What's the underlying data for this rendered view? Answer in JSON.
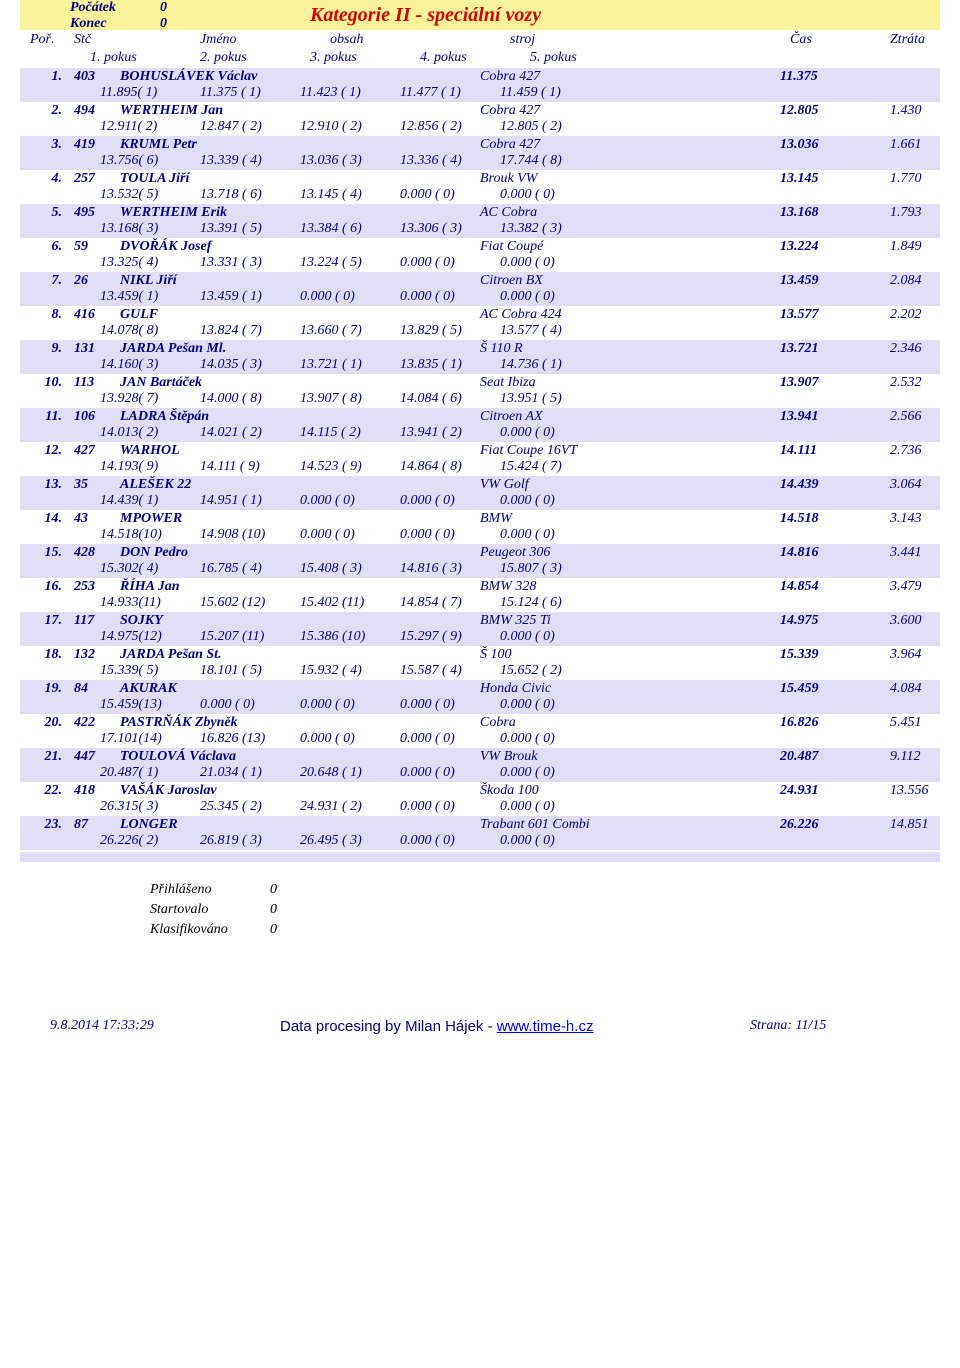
{
  "header": {
    "pocatek_label": "Počátek",
    "pocatek_value": "0",
    "konec_label": "Konec",
    "konec_value": "0",
    "title": "Kategorie II - speciální vozy"
  },
  "colhead": {
    "por": "Poř.",
    "stc": "Stč",
    "jmeno": "Jméno",
    "obsah": "obsah",
    "stroj": "stroj",
    "cas": "Čas",
    "ztrata": "Ztráta",
    "p1": "1. pokus",
    "p2": "2. pokus",
    "p3": "3. pokus",
    "p4": "4. pokus",
    "p5": "5. pokus"
  },
  "rows": [
    {
      "por": "1.",
      "stc": "403",
      "name": "BOHUSLÁVEK Václav",
      "stroj": "Cobra 427",
      "cas": "11.375",
      "ztrata": "",
      "p": [
        "11.895( 1)",
        "11.375 ( 1)",
        "11.423 ( 1)",
        "11.477 ( 1)",
        "11.459 ( 1)"
      ]
    },
    {
      "por": "2.",
      "stc": "494",
      "name": "WERTHEIM Jan",
      "stroj": "Cobra 427",
      "cas": "12.805",
      "ztrata": "1.430",
      "p": [
        "12.911( 2)",
        "12.847 ( 2)",
        "12.910 ( 2)",
        "12.856 ( 2)",
        "12.805 ( 2)"
      ]
    },
    {
      "por": "3.",
      "stc": "419",
      "name": "KRUML Petr",
      "stroj": "Cobra 427",
      "cas": "13.036",
      "ztrata": "1.661",
      "p": [
        "13.756( 6)",
        "13.339 ( 4)",
        "13.036 ( 3)",
        "13.336 ( 4)",
        "17.744 ( 8)"
      ]
    },
    {
      "por": "4.",
      "stc": "257",
      "name": "TOULA Jiří",
      "stroj": "Brouk VW",
      "cas": "13.145",
      "ztrata": "1.770",
      "p": [
        "13.532( 5)",
        "13.718 ( 6)",
        "13.145 ( 4)",
        "0.000 ( 0)",
        "0.000 ( 0)"
      ]
    },
    {
      "por": "5.",
      "stc": "495",
      "name": "WERTHEIM Erik",
      "stroj": "AC Cobra",
      "cas": "13.168",
      "ztrata": "1.793",
      "p": [
        "13.168( 3)",
        "13.391 ( 5)",
        "13.384 ( 6)",
        "13.306 ( 3)",
        "13.382 ( 3)"
      ]
    },
    {
      "por": "6.",
      "stc": "59",
      "name": "DVOŘÁK Josef",
      "stroj": "Fiat Coupé",
      "cas": "13.224",
      "ztrata": "1.849",
      "p": [
        "13.325( 4)",
        "13.331 ( 3)",
        "13.224 ( 5)",
        "0.000 ( 0)",
        "0.000 ( 0)"
      ]
    },
    {
      "por": "7.",
      "stc": "26",
      "name": "NIKL Jiří",
      "stroj": "Citroen BX",
      "cas": "13.459",
      "ztrata": "2.084",
      "p": [
        "13.459( 1)",
        "13.459 ( 1)",
        "0.000 ( 0)",
        "0.000 ( 0)",
        "0.000 ( 0)"
      ]
    },
    {
      "por": "8.",
      "stc": "416",
      "name": "GULF",
      "stroj": "AC Cobra 424",
      "cas": "13.577",
      "ztrata": "2.202",
      "p": [
        "14.078( 8)",
        "13.824 ( 7)",
        "13.660 ( 7)",
        "13.829 ( 5)",
        "13.577 ( 4)"
      ]
    },
    {
      "por": "9.",
      "stc": "131",
      "name": "JARDA Pešan Ml.",
      "stroj": "Š 110 R",
      "cas": "13.721",
      "ztrata": "2.346",
      "p": [
        "14.160( 3)",
        "14.035 ( 3)",
        "13.721 ( 1)",
        "13.835 ( 1)",
        "14.736 ( 1)"
      ]
    },
    {
      "por": "10.",
      "stc": "113",
      "name": "JAN Bartáček",
      "stroj": "Seat Ibiza",
      "cas": "13.907",
      "ztrata": "2.532",
      "p": [
        "13.928( 7)",
        "14.000 ( 8)",
        "13.907 ( 8)",
        "14.084 ( 6)",
        "13.951 ( 5)"
      ]
    },
    {
      "por": "11.",
      "stc": "106",
      "name": "LADRA Štěpán",
      "stroj": "Citroen AX",
      "cas": "13.941",
      "ztrata": "2.566",
      "p": [
        "14.013( 2)",
        "14.021 ( 2)",
        "14.115 ( 2)",
        "13.941 ( 2)",
        "0.000 ( 0)"
      ]
    },
    {
      "por": "12.",
      "stc": "427",
      "name": "WARHOL",
      "stroj": "Fiat Coupe 16VT",
      "cas": "14.111",
      "ztrata": "2.736",
      "p": [
        "14.193( 9)",
        "14.111 ( 9)",
        "14.523 ( 9)",
        "14.864 ( 8)",
        "15.424 ( 7)"
      ]
    },
    {
      "por": "13.",
      "stc": "35",
      "name": "ALEŠEK 22",
      "stroj": "VW Golf",
      "cas": "14.439",
      "ztrata": "3.064",
      "p": [
        "14.439( 1)",
        "14.951 ( 1)",
        "0.000 ( 0)",
        "0.000 ( 0)",
        "0.000 ( 0)"
      ]
    },
    {
      "por": "14.",
      "stc": "43",
      "name": "MPOWER",
      "stroj": "BMW",
      "cas": "14.518",
      "ztrata": "3.143",
      "p": [
        "14.518(10)",
        "14.908 (10)",
        "0.000 ( 0)",
        "0.000 ( 0)",
        "0.000 ( 0)"
      ]
    },
    {
      "por": "15.",
      "stc": "428",
      "name": "DON Pedro",
      "stroj": "Peugeot 306",
      "cas": "14.816",
      "ztrata": "3.441",
      "p": [
        "15.302( 4)",
        "16.785 ( 4)",
        "15.408 ( 3)",
        "14.816 ( 3)",
        "15.807 ( 3)"
      ]
    },
    {
      "por": "16.",
      "stc": "253",
      "name": "ŘÍHA Jan",
      "stroj": "BMW 328",
      "cas": "14.854",
      "ztrata": "3.479",
      "p": [
        "14.933(11)",
        "15.602 (12)",
        "15.402 (11)",
        "14.854 ( 7)",
        "15.124 ( 6)"
      ]
    },
    {
      "por": "17.",
      "stc": "117",
      "name": "SOJKY",
      "stroj": "BMW 325 Ti",
      "cas": "14.975",
      "ztrata": "3.600",
      "p": [
        "14.975(12)",
        "15.207 (11)",
        "15.386 (10)",
        "15.297 ( 9)",
        "0.000 ( 0)"
      ]
    },
    {
      "por": "18.",
      "stc": "132",
      "name": "JARDA Pešan St.",
      "stroj": "Š 100",
      "cas": "15.339",
      "ztrata": "3.964",
      "p": [
        "15.339( 5)",
        "18.101 ( 5)",
        "15.932 ( 4)",
        "15.587 ( 4)",
        "15.652 ( 2)"
      ]
    },
    {
      "por": "19.",
      "stc": "84",
      "name": "AKURAK",
      "stroj": "Honda Civic",
      "cas": "15.459",
      "ztrata": "4.084",
      "p": [
        "15.459(13)",
        "0.000 ( 0)",
        "0.000 ( 0)",
        "0.000 ( 0)",
        "0.000 ( 0)"
      ]
    },
    {
      "por": "20.",
      "stc": "422",
      "name": "PASTRŇÁK Zbyněk",
      "stroj": "Cobra",
      "cas": "16.826",
      "ztrata": "5.451",
      "p": [
        "17.101(14)",
        "16.826 (13)",
        "0.000 ( 0)",
        "0.000 ( 0)",
        "0.000 ( 0)"
      ]
    },
    {
      "por": "21.",
      "stc": "447",
      "name": "TOULOVÁ Václava",
      "stroj": "VW Brouk",
      "cas": "20.487",
      "ztrata": "9.112",
      "p": [
        "20.487( 1)",
        "21.034 ( 1)",
        "20.648 ( 1)",
        "0.000 ( 0)",
        "0.000 ( 0)"
      ]
    },
    {
      "por": "22.",
      "stc": "418",
      "name": "VAŠÁK Jaroslav",
      "stroj": "Škoda 100",
      "cas": "24.931",
      "ztrata": "13.556",
      "p": [
        "26.315( 3)",
        "25.345 ( 2)",
        "24.931 ( 2)",
        "0.000 ( 0)",
        "0.000 ( 0)"
      ]
    },
    {
      "por": "23.",
      "stc": "87",
      "name": "LONGER",
      "stroj": "Trabant 601 Combi",
      "cas": "26.226",
      "ztrata": "14.851",
      "p": [
        "26.226( 2)",
        "26.819 ( 3)",
        "26.495 ( 3)",
        "0.000 ( 0)",
        "0.000 ( 0)"
      ]
    }
  ],
  "summary": {
    "prihlaseno_label": "Přihlášeno",
    "prihlaseno_value": "0",
    "startovalo_label": "Startovalo",
    "startovalo_value": "0",
    "klasifikovano_label": "Klasifikováno",
    "klasifikovano_value": "0"
  },
  "footer": {
    "datetime": "9.8.2014 17:33:29",
    "mid_prefix": "Data procesing by Milan Hájek - ",
    "mid_link": "www.time-h.cz",
    "page": "Strana: 11/15"
  }
}
